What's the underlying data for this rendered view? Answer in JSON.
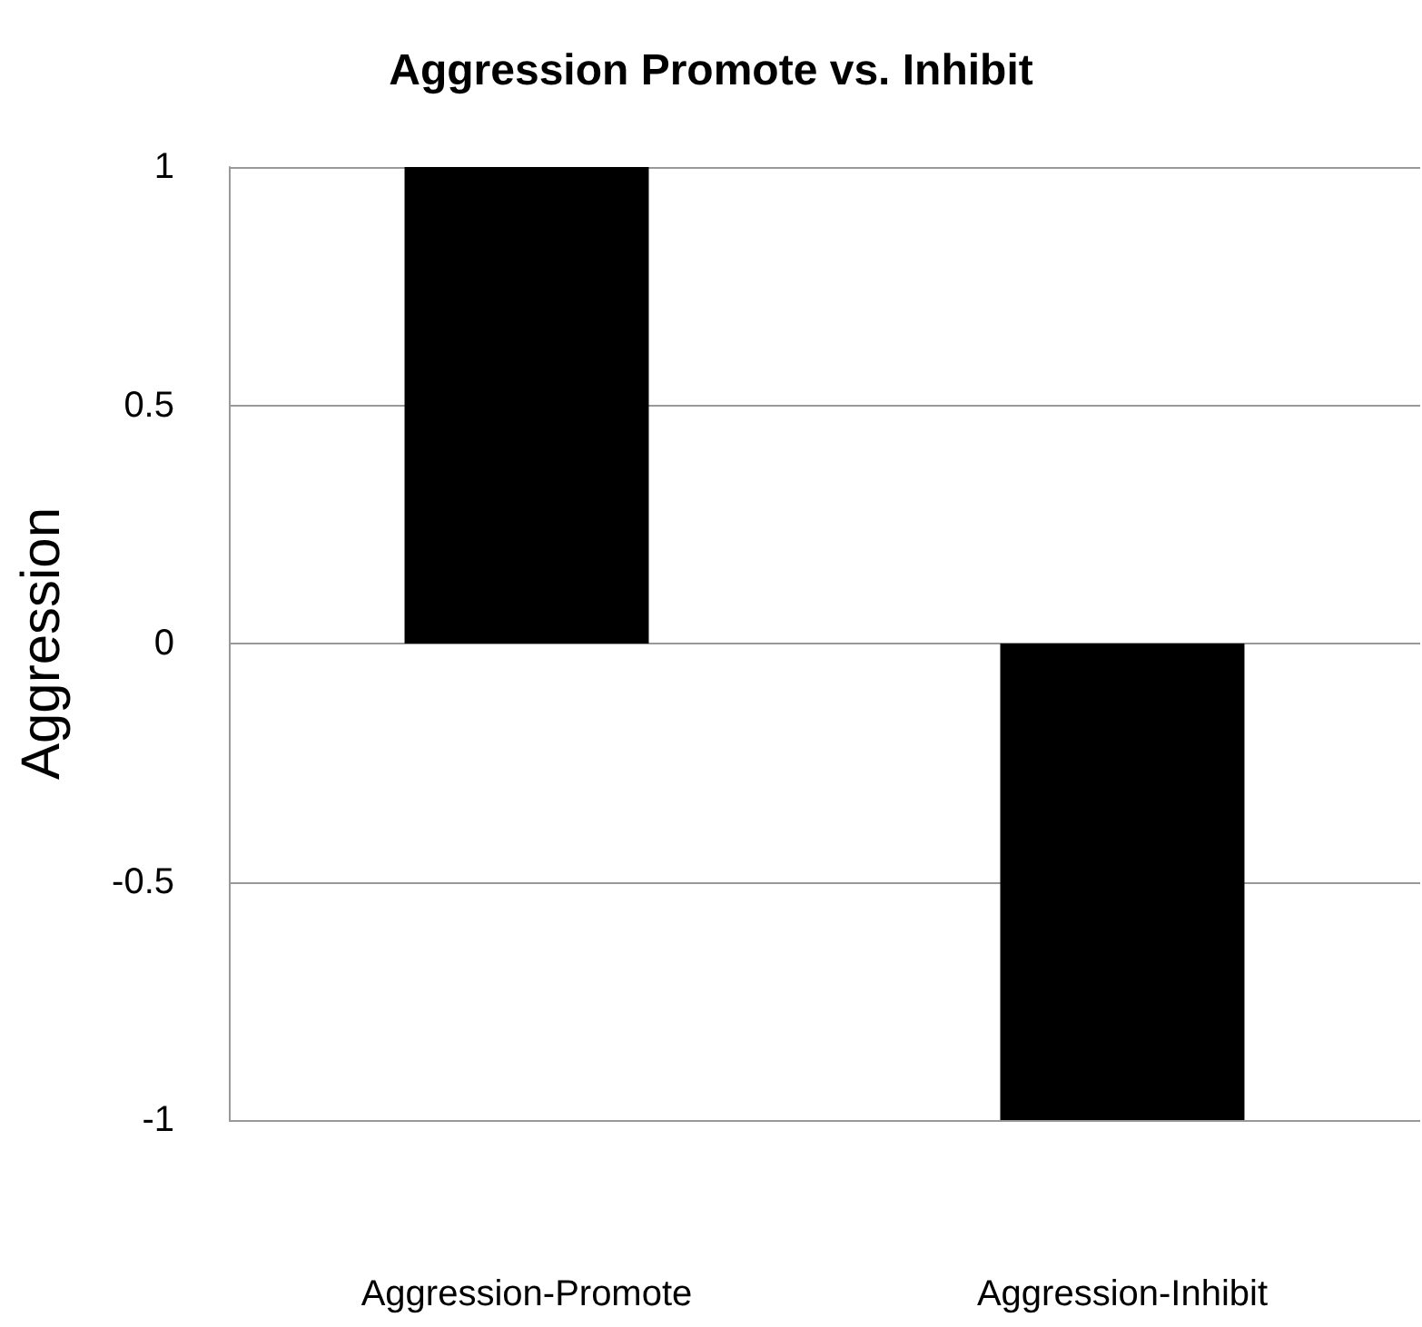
{
  "chart_data": {
    "type": "bar",
    "title": "Aggression Promote vs. Inhibit",
    "ylabel": "Aggression",
    "categories": [
      "Aggression-Promote",
      "Aggression-Inhibit"
    ],
    "values": [
      1,
      -1
    ],
    "color": "#000000",
    "ylim": [
      -1,
      1
    ],
    "yticks": [
      -1,
      -0.5,
      0,
      0.5,
      1
    ],
    "grid": "y"
  }
}
